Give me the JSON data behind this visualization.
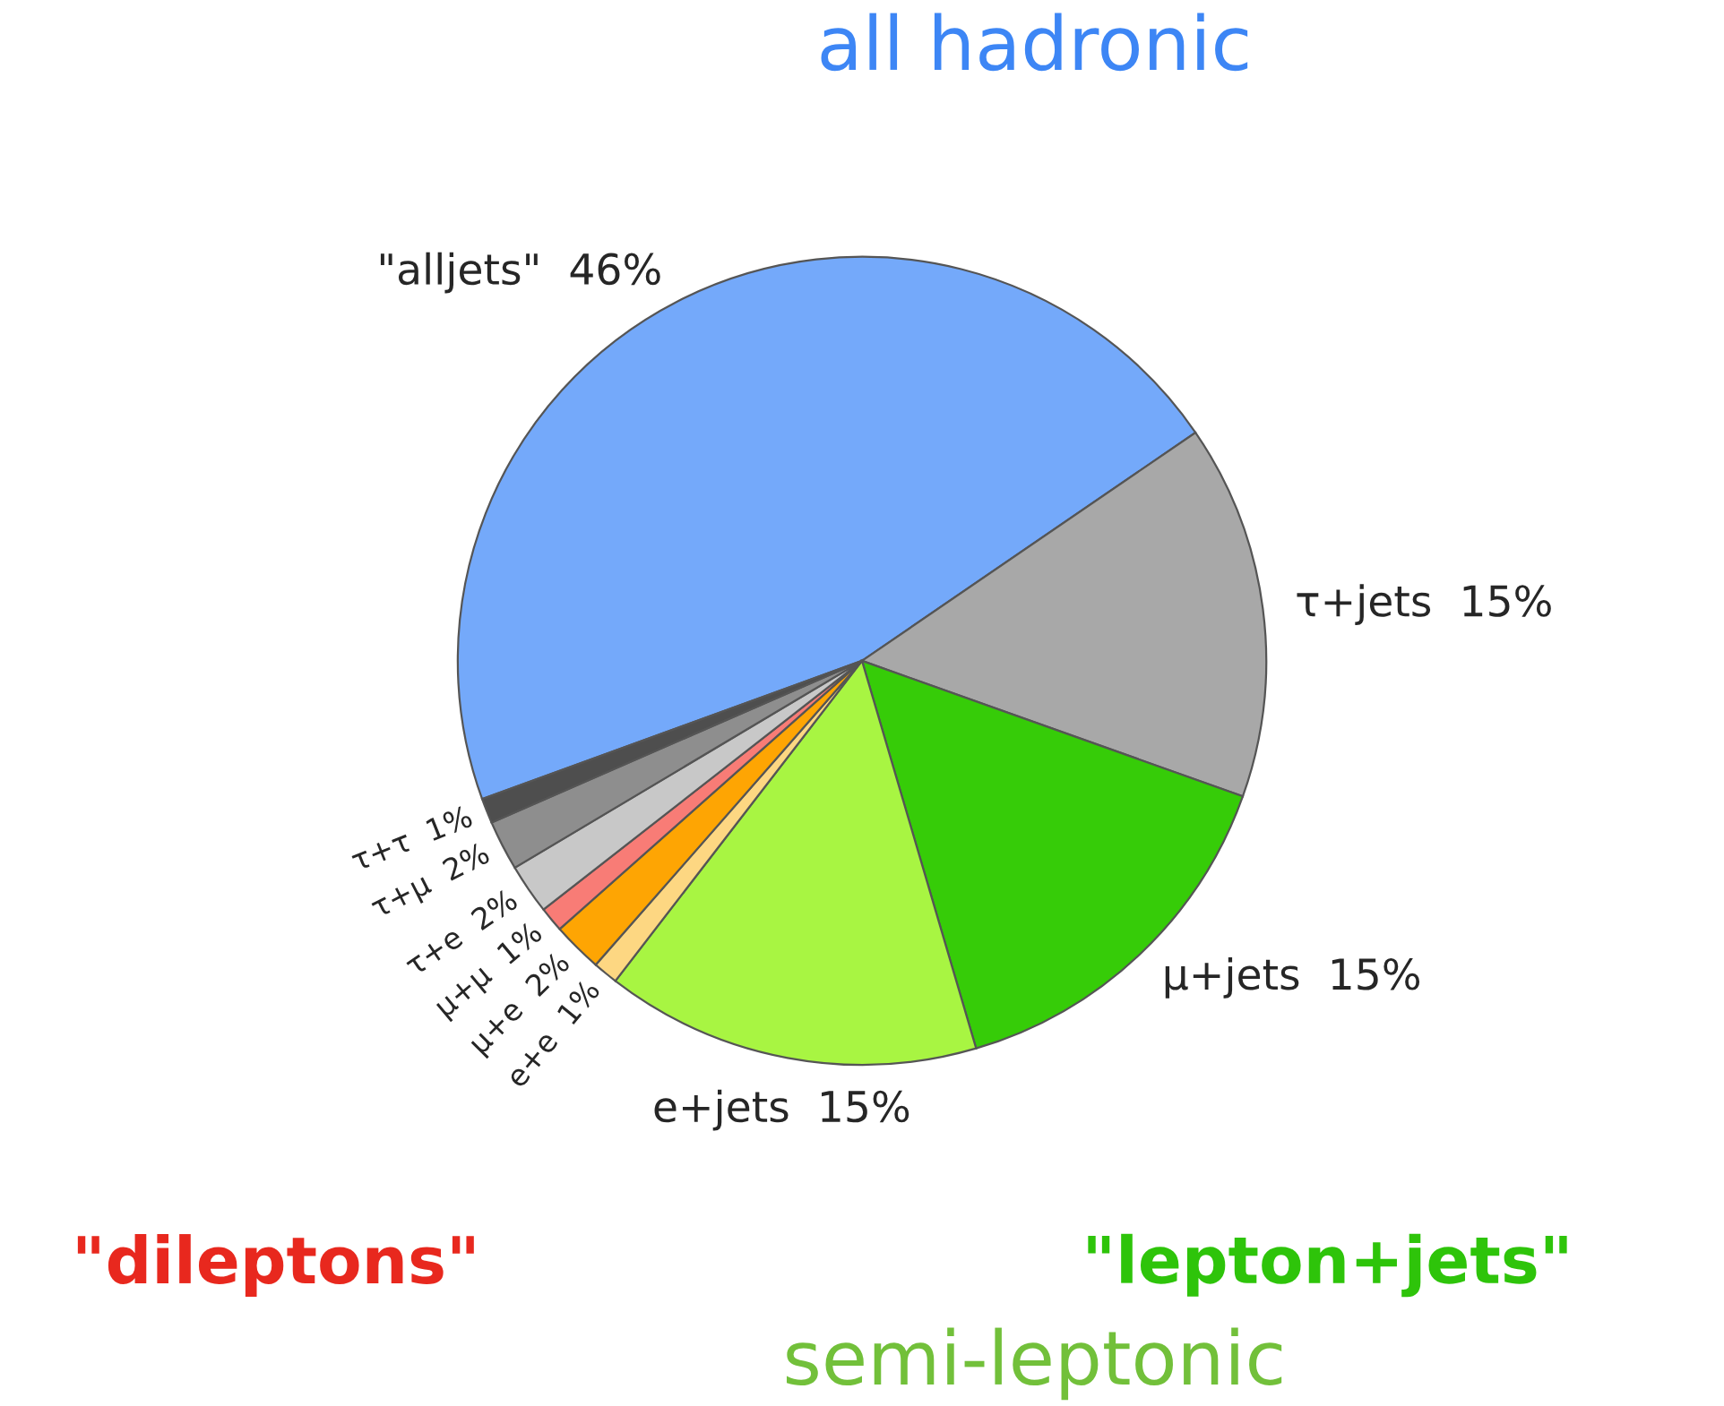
{
  "chart_data": {
    "type": "pie",
    "categories": [
      "\"alljets\"",
      "τ+jets",
      "μ+jets",
      "e+jets",
      "e+e",
      "μ+e",
      "μ+μ",
      "τ+e",
      "τ+μ",
      "τ+τ"
    ],
    "values": [
      46,
      15,
      15,
      15,
      1,
      2,
      1,
      2,
      2,
      1
    ],
    "value_labels": [
      "46%",
      "15%",
      "15%",
      "15%",
      "1%",
      "2%",
      "1%",
      "2%",
      "2%",
      "1%"
    ],
    "colors": [
      "#74a9fa",
      "#a8a8a8",
      "#36cc08",
      "#a8f542",
      "#fdd782",
      "#fea503",
      "#f87c76",
      "#c8c8c8",
      "#8e8e8e",
      "#4e4e4e"
    ],
    "annotations": [
      "all hadronic",
      "\"lepton+jets\"",
      "semi-leptonic",
      "\"dileptons\""
    ]
  }
}
